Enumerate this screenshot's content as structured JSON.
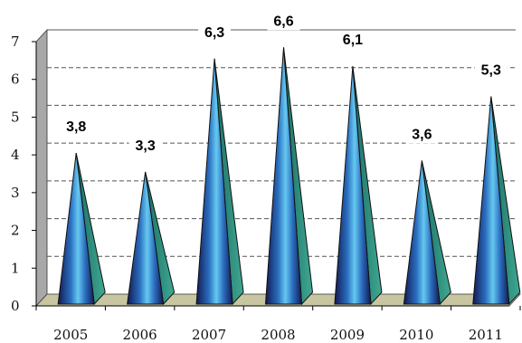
{
  "chart_data": {
    "type": "bar",
    "categories": [
      "2005",
      "2006",
      "2007",
      "2008",
      "2009",
      "2010",
      "2011"
    ],
    "values": [
      3.8,
      3.3,
      6.3,
      6.6,
      6.1,
      3.6,
      5.3
    ],
    "value_labels": [
      "3,8",
      "3,3",
      "6,3",
      "6,6",
      "6,1",
      "3,6",
      "5,3"
    ],
    "title": "",
    "xlabel": "",
    "ylabel": "",
    "ylim": [
      0,
      7
    ],
    "yticks": [
      "0",
      "1",
      "2",
      "3",
      "4",
      "5",
      "6",
      "7"
    ],
    "grid": "dashed-horizontal",
    "legend": "none",
    "colors": {
      "bar_front_dark": "#1a1f5c",
      "bar_front_light": "#5fc4ee",
      "bar_side": "#2a8a7a",
      "wall_left": "#a8a8a8",
      "floor": "#c8c6a0",
      "grid": "#555555"
    }
  }
}
